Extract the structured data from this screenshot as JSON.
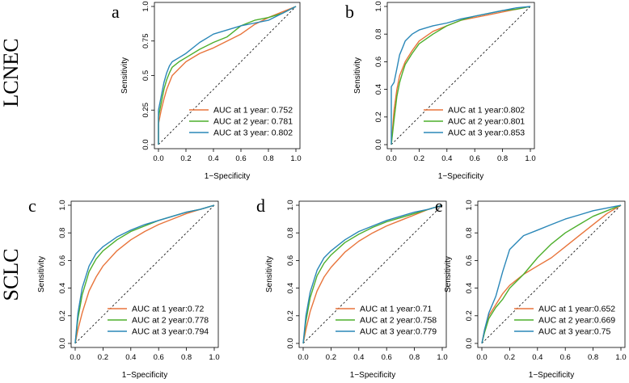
{
  "row_labels": [
    "LCNEC",
    "SCLC"
  ],
  "colors": {
    "year1": "#E8743B",
    "year2": "#4DAF2C",
    "year3": "#2A87B8",
    "diagonal": "#000000",
    "axis": "#000000"
  },
  "chart_data": [
    {
      "panel": "a",
      "type": "line",
      "xlabel": "1−Specificity",
      "ylabel": "Sensitivity",
      "xlim": [
        0,
        1
      ],
      "ylim": [
        0,
        1
      ],
      "xticks": [
        "0.0",
        "0.2",
        "0.4",
        "0.6",
        "0.8",
        "1.0"
      ],
      "yticks": [
        "0.0",
        "0.25",
        "0.5",
        "0.75",
        "1.0"
      ],
      "grid": false,
      "legend_position": "bottom-right",
      "series": [
        {
          "name": "AUC at 1 year: 0.752",
          "x": [
            0,
            0,
            0.02,
            0.04,
            0.06,
            0.08,
            0.1,
            0.15,
            0.2,
            0.3,
            0.4,
            0.5,
            0.6,
            0.7,
            0.8,
            0.9,
            1.0
          ],
          "y": [
            0,
            0.15,
            0.25,
            0.33,
            0.4,
            0.45,
            0.5,
            0.55,
            0.6,
            0.66,
            0.7,
            0.75,
            0.8,
            0.87,
            0.92,
            0.96,
            1.0
          ]
        },
        {
          "name": "AUC at 2 year: 0.781",
          "x": [
            0,
            0,
            0.02,
            0.04,
            0.06,
            0.08,
            0.1,
            0.15,
            0.2,
            0.3,
            0.4,
            0.5,
            0.6,
            0.7,
            0.8,
            0.9,
            1.0
          ],
          "y": [
            0,
            0.2,
            0.3,
            0.4,
            0.47,
            0.52,
            0.56,
            0.6,
            0.63,
            0.69,
            0.74,
            0.78,
            0.86,
            0.9,
            0.92,
            0.95,
            1.0
          ]
        },
        {
          "name": "AUC at 3 year: 0.802",
          "x": [
            0,
            0,
            0.02,
            0.04,
            0.06,
            0.08,
            0.1,
            0.15,
            0.2,
            0.3,
            0.4,
            0.5,
            0.6,
            0.7,
            0.8,
            0.9,
            1.0
          ],
          "y": [
            0,
            0.25,
            0.35,
            0.45,
            0.52,
            0.57,
            0.6,
            0.63,
            0.66,
            0.74,
            0.8,
            0.83,
            0.86,
            0.88,
            0.9,
            0.95,
            1.0
          ]
        }
      ]
    },
    {
      "panel": "b",
      "type": "line",
      "xlabel": "1−Specificity",
      "ylabel": "Sensitivity",
      "xlim": [
        0,
        1
      ],
      "ylim": [
        0,
        1
      ],
      "xticks": [
        "0.0",
        "0.2",
        "0.4",
        "0.6",
        "0.8",
        "1.0"
      ],
      "yticks": [
        "0.0",
        "0.2",
        "0.4",
        "0.6",
        "0.8",
        "1.0"
      ],
      "grid": false,
      "legend_position": "bottom-right",
      "series": [
        {
          "name": "AUC at 1 year:0.802",
          "x": [
            0,
            0.02,
            0.04,
            0.06,
            0.08,
            0.1,
            0.15,
            0.2,
            0.3,
            0.4,
            0.5,
            0.6,
            0.7,
            0.8,
            0.9,
            1.0
          ],
          "y": [
            0,
            0.25,
            0.4,
            0.5,
            0.55,
            0.6,
            0.68,
            0.75,
            0.82,
            0.86,
            0.9,
            0.92,
            0.94,
            0.96,
            0.98,
            1.0
          ]
        },
        {
          "name": "AUC at 2 year:0.801",
          "x": [
            0,
            0.02,
            0.04,
            0.06,
            0.08,
            0.1,
            0.15,
            0.2,
            0.3,
            0.4,
            0.5,
            0.6,
            0.7,
            0.8,
            0.9,
            1.0
          ],
          "y": [
            0,
            0.18,
            0.35,
            0.45,
            0.52,
            0.58,
            0.66,
            0.73,
            0.8,
            0.86,
            0.9,
            0.93,
            0.95,
            0.97,
            0.98,
            1.0
          ]
        },
        {
          "name": "AUC at 3 year:0.853",
          "x": [
            0,
            0,
            0.02,
            0.04,
            0.06,
            0.08,
            0.1,
            0.15,
            0.2,
            0.3,
            0.4,
            0.5,
            0.6,
            0.7,
            0.8,
            0.9,
            1.0
          ],
          "y": [
            0,
            0.42,
            0.45,
            0.55,
            0.65,
            0.7,
            0.75,
            0.8,
            0.83,
            0.86,
            0.88,
            0.91,
            0.93,
            0.95,
            0.97,
            0.99,
            1.0
          ]
        }
      ]
    },
    {
      "panel": "c",
      "type": "line",
      "xlabel": "1−Specificity",
      "ylabel": "Sensitivity",
      "xlim": [
        0,
        1
      ],
      "ylim": [
        0,
        1
      ],
      "xticks": [
        "0.0",
        "0.2",
        "0.4",
        "0.6",
        "0.8",
        "1.0"
      ],
      "yticks": [
        "0.0",
        "0.2",
        "0.4",
        "0.6",
        "0.8",
        "1.0"
      ],
      "grid": false,
      "legend_position": "bottom-right",
      "series": [
        {
          "name": "AUC at 1 year:0.72",
          "x": [
            0,
            0.02,
            0.05,
            0.1,
            0.15,
            0.2,
            0.3,
            0.4,
            0.5,
            0.6,
            0.7,
            0.8,
            0.9,
            1.0
          ],
          "y": [
            0,
            0.1,
            0.22,
            0.38,
            0.48,
            0.56,
            0.67,
            0.75,
            0.81,
            0.86,
            0.9,
            0.94,
            0.97,
            1.0
          ]
        },
        {
          "name": "AUC at 2 year:0.778",
          "x": [
            0,
            0.02,
            0.05,
            0.1,
            0.15,
            0.2,
            0.3,
            0.4,
            0.5,
            0.6,
            0.7,
            0.8,
            0.9,
            1.0
          ],
          "y": [
            0,
            0.18,
            0.35,
            0.52,
            0.61,
            0.67,
            0.75,
            0.81,
            0.85,
            0.89,
            0.92,
            0.95,
            0.97,
            1.0
          ]
        },
        {
          "name": "AUC at 3 year:0.794",
          "x": [
            0,
            0.02,
            0.05,
            0.1,
            0.15,
            0.2,
            0.3,
            0.4,
            0.5,
            0.6,
            0.7,
            0.8,
            0.9,
            1.0
          ],
          "y": [
            0,
            0.22,
            0.4,
            0.56,
            0.65,
            0.7,
            0.77,
            0.82,
            0.86,
            0.89,
            0.92,
            0.95,
            0.97,
            1.0
          ]
        }
      ]
    },
    {
      "panel": "d",
      "type": "line",
      "xlabel": "1−Specificity",
      "ylabel": "Sensitivity",
      "xlim": [
        0,
        1
      ],
      "ylim": [
        0,
        1
      ],
      "xticks": [
        "0.0",
        "0.2",
        "0.4",
        "0.6",
        "0.8",
        "1.0"
      ],
      "yticks": [
        "0.0",
        "0.2",
        "0.4",
        "0.6",
        "0.8",
        "1.0"
      ],
      "grid": false,
      "legend_position": "bottom-right",
      "series": [
        {
          "name": "AUC at 1 year:0.71",
          "x": [
            0,
            0.02,
            0.05,
            0.1,
            0.15,
            0.2,
            0.3,
            0.4,
            0.5,
            0.6,
            0.7,
            0.8,
            0.9,
            1.0
          ],
          "y": [
            0,
            0.1,
            0.23,
            0.38,
            0.48,
            0.55,
            0.66,
            0.74,
            0.8,
            0.85,
            0.89,
            0.93,
            0.97,
            1.0
          ]
        },
        {
          "name": "AUC at 2 year:0.758",
          "x": [
            0,
            0.02,
            0.05,
            0.1,
            0.15,
            0.2,
            0.3,
            0.4,
            0.5,
            0.6,
            0.7,
            0.8,
            0.9,
            1.0
          ],
          "y": [
            0,
            0.16,
            0.33,
            0.49,
            0.58,
            0.64,
            0.73,
            0.79,
            0.84,
            0.88,
            0.91,
            0.94,
            0.97,
            1.0
          ]
        },
        {
          "name": "AUC at 3 year:0.779",
          "x": [
            0,
            0.02,
            0.05,
            0.1,
            0.15,
            0.2,
            0.3,
            0.4,
            0.5,
            0.6,
            0.7,
            0.8,
            0.9,
            1.0
          ],
          "y": [
            0,
            0.2,
            0.37,
            0.53,
            0.62,
            0.67,
            0.75,
            0.81,
            0.85,
            0.89,
            0.92,
            0.95,
            0.97,
            1.0
          ]
        }
      ]
    },
    {
      "panel": "e",
      "type": "line",
      "xlabel": "1−Specificity",
      "ylabel": "Sensitivity",
      "xlim": [
        0,
        1
      ],
      "ylim": [
        0,
        1
      ],
      "xticks": [
        "0.0",
        "0.2",
        "0.4",
        "0.6",
        "0.8",
        "1.0"
      ],
      "yticks": [
        "0.0",
        "0.2",
        "0.4",
        "0.6",
        "0.8",
        "1.0"
      ],
      "grid": false,
      "legend_position": "bottom-right",
      "series": [
        {
          "name": "AUC at 1 year:0.652",
          "x": [
            0,
            0.02,
            0.05,
            0.1,
            0.15,
            0.2,
            0.3,
            0.4,
            0.5,
            0.6,
            0.7,
            0.8,
            0.9,
            1.0
          ],
          "y": [
            0,
            0.1,
            0.2,
            0.28,
            0.36,
            0.42,
            0.5,
            0.56,
            0.62,
            0.7,
            0.78,
            0.86,
            0.94,
            1.0
          ]
        },
        {
          "name": "AUC at 2 year:0.669",
          "x": [
            0,
            0.02,
            0.05,
            0.1,
            0.15,
            0.2,
            0.3,
            0.4,
            0.5,
            0.6,
            0.7,
            0.8,
            0.9,
            1.0
          ],
          "y": [
            0,
            0.08,
            0.18,
            0.26,
            0.32,
            0.4,
            0.5,
            0.62,
            0.72,
            0.8,
            0.86,
            0.92,
            0.96,
            1.0
          ]
        },
        {
          "name": "AUC at 3 year:0.75",
          "x": [
            0,
            0.02,
            0.05,
            0.1,
            0.15,
            0.2,
            0.3,
            0.4,
            0.5,
            0.6,
            0.7,
            0.8,
            0.9,
            1.0
          ],
          "y": [
            0,
            0.1,
            0.22,
            0.34,
            0.52,
            0.68,
            0.78,
            0.82,
            0.86,
            0.9,
            0.93,
            0.96,
            0.98,
            1.0
          ]
        }
      ]
    }
  ]
}
